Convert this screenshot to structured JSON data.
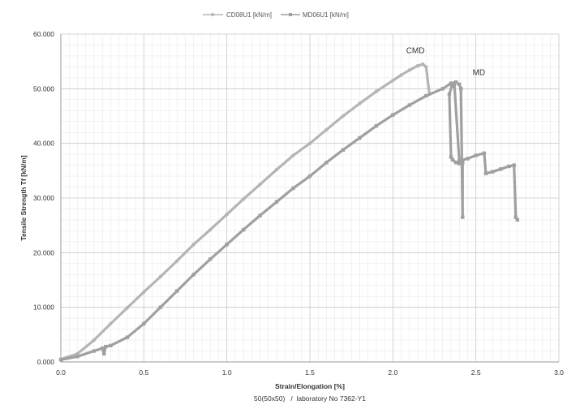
{
  "chart_data": {
    "type": "line",
    "xlabel": "Strain/Elongation [%]",
    "ylabel": "Tensile Strength Tf [kN/m]",
    "footnote": "50(50x50)   /  laboratory No 7362-Y1",
    "xlim": [
      0,
      3.0
    ],
    "ylim": [
      0,
      60
    ],
    "x_ticks": [
      "0.0",
      "0.5",
      "1.0",
      "1.5",
      "2.0",
      "2.5",
      "3.0"
    ],
    "y_ticks": [
      "0.000",
      "10.000",
      "20.000",
      "30.000",
      "40.000",
      "50.000",
      "60.000"
    ],
    "grid": true,
    "legend_position": "top",
    "series": [
      {
        "name": "CD08U1 [kN/m]",
        "color": "#b5b5b5",
        "x": [
          0,
          0.1,
          0.2,
          0.3,
          0.4,
          0.5,
          0.6,
          0.7,
          0.8,
          0.9,
          1.0,
          1.1,
          1.2,
          1.3,
          1.4,
          1.5,
          1.6,
          1.7,
          1.8,
          1.9,
          2.0,
          2.05,
          2.1,
          2.15,
          2.18,
          2.2,
          2.22
        ],
        "y": [
          0.5,
          1.5,
          4.0,
          7.0,
          9.9,
          12.8,
          15.6,
          18.5,
          21.5,
          24.2,
          27.0,
          29.8,
          32.5,
          35.2,
          37.8,
          40.0,
          42.5,
          45.0,
          47.3,
          49.5,
          51.5,
          52.5,
          53.4,
          54.2,
          54.5,
          54.0,
          49.0
        ]
      },
      {
        "name": "MD06U1 [kN/m]",
        "color": "#a0a0a0",
        "x": [
          0,
          0.1,
          0.2,
          0.25,
          0.26,
          0.27,
          0.3,
          0.4,
          0.5,
          0.6,
          0.7,
          0.8,
          0.9,
          1.0,
          1.1,
          1.2,
          1.3,
          1.4,
          1.5,
          1.6,
          1.7,
          1.8,
          1.9,
          2.0,
          2.1,
          2.2,
          2.3,
          2.35,
          2.38,
          2.4,
          2.41,
          2.42,
          2.42,
          2.4,
          2.38,
          2.36,
          2.35,
          2.34,
          2.355,
          2.37,
          2.4,
          2.45,
          2.5,
          2.55,
          2.56,
          2.6,
          2.65,
          2.7,
          2.73,
          2.74,
          2.75
        ],
        "y": [
          0.4,
          1.0,
          2.0,
          2.5,
          1.5,
          2.8,
          3.0,
          4.5,
          7.0,
          10.0,
          13.0,
          16.0,
          18.8,
          21.5,
          24.2,
          26.8,
          29.3,
          31.8,
          34.0,
          36.5,
          38.8,
          41.0,
          43.2,
          45.2,
          47.0,
          48.7,
          50.0,
          51.0,
          51.2,
          50.8,
          50.0,
          26.5,
          36.5,
          36.3,
          36.5,
          37.0,
          37.5,
          49.0,
          50.5,
          50.8,
          36.8,
          37.2,
          37.8,
          38.2,
          34.5,
          34.8,
          35.3,
          35.8,
          36.0,
          26.5,
          26.0
        ]
      }
    ],
    "annotations": [
      {
        "text": "CMD",
        "x": 2.08,
        "y": 56.5
      },
      {
        "text": "MD",
        "x": 2.48,
        "y": 52.5
      }
    ]
  }
}
